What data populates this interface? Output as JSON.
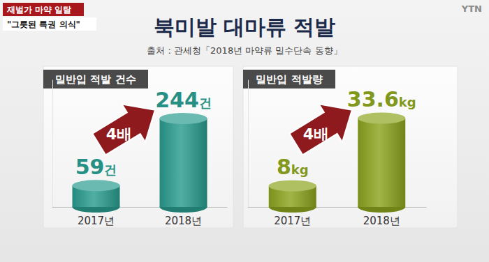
{
  "title": "북미발 대마류 적발",
  "source": "출처 : 관세청「2018년 마약류 밀수단속 동향」",
  "tags": [
    "재벌가 마약 일탈",
    "\"그릇된 특권 의식\""
  ],
  "logo": "YTN",
  "chart_data": [
    {
      "type": "bar",
      "title": "밀반입 적발 건수",
      "categories": [
        "2017년",
        "2018년"
      ],
      "values": [
        59,
        244
      ],
      "value_labels": [
        "59건",
        "244건"
      ],
      "color": "#2a9d8f",
      "ylim": [
        0,
        350
      ],
      "data_labels": true,
      "tick_labels": "x",
      "annotation": "4배"
    },
    {
      "type": "bar",
      "title": "밀반입 적발량",
      "categories": [
        "2017년",
        "2018년"
      ],
      "values": [
        8,
        33.6
      ],
      "value_labels": [
        "8kg",
        "33.6kg"
      ],
      "color": "#8ca51e",
      "ylim": [
        0,
        48
      ],
      "data_labels": true,
      "tick_labels": "x",
      "annotation": "4배"
    }
  ]
}
